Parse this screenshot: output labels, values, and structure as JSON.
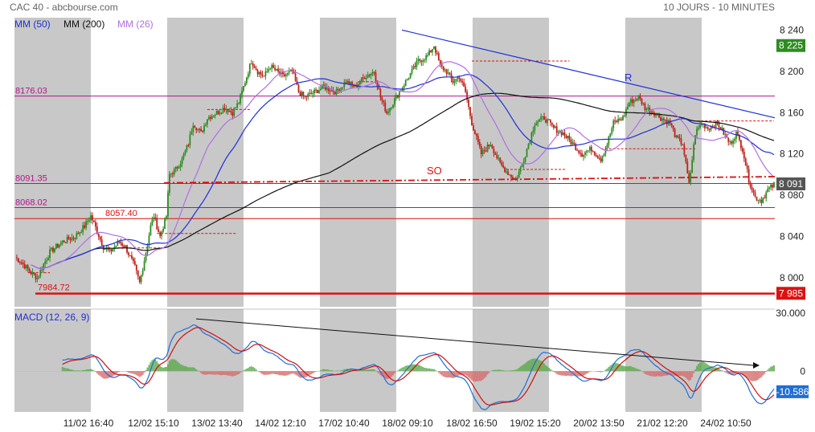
{
  "header": {
    "title": "CAC 40 - abcbourse.com",
    "period": "10 JOURS - 10 MINUTES"
  },
  "legend": {
    "mm50": "MM (50)",
    "mm200": "MM (200)",
    "mm26": "MM (26)"
  },
  "colors": {
    "mm50": "#1f2fd6",
    "mm200": "#111111",
    "mm26": "#b070e0",
    "up": "#2e8b22",
    "down": "#c0201a",
    "level": "#b0158c",
    "support": "#dd1111",
    "resistance": "#1f2fd6",
    "shade": "#c8c8c8"
  },
  "chart_data": {
    "type": "candlestick",
    "price_axis": {
      "ticks": [
        "8 240",
        "8 200",
        "8 160",
        "8 120",
        "8 080",
        "8 040",
        "8 000"
      ],
      "tick_values": [
        8240,
        8200,
        8160,
        8120,
        8080,
        8040,
        8000
      ],
      "ylim": [
        7972,
        8252
      ]
    },
    "badges": {
      "last_high": "8 225",
      "last": "8 091",
      "low": "7 985"
    },
    "level_labels": [
      "8176.03",
      "8091.35",
      "8068.02",
      "8057.40",
      "7984.72"
    ],
    "level_values": [
      8176.03,
      8091.35,
      8068.02,
      8057.4,
      7984.72
    ],
    "annotations": {
      "resistance": "R",
      "support": "SO"
    },
    "x_labels": [
      "11/02 16:40",
      "12/02 15:10",
      "13/02 13:40",
      "14/02 12:10",
      "17/02 10:40",
      "18/02 09:10",
      "18/02 16:50",
      "19/02 15:20",
      "20/02 13:50",
      "21/02 12:20",
      "24/02 10:50"
    ],
    "shaded_sessions": [
      0,
      2,
      4,
      6,
      8
    ],
    "series": [
      {
        "name": "CAC 40",
        "anchors": [
          [
            0,
            8020
          ],
          [
            4,
            8015
          ],
          [
            10,
            8005
          ],
          [
            14,
            8000
          ],
          [
            17,
            8010
          ],
          [
            22,
            8025
          ],
          [
            30,
            8035
          ],
          [
            38,
            8040
          ],
          [
            44,
            8050
          ],
          [
            48,
            8060
          ],
          [
            52,
            8045
          ],
          [
            56,
            8030
          ],
          [
            60,
            8025
          ],
          [
            66,
            8035
          ],
          [
            70,
            8030
          ],
          [
            76,
            8010
          ],
          [
            79,
            7995
          ],
          [
            83,
            8025
          ],
          [
            86,
            8050
          ],
          [
            88,
            8060
          ],
          [
            92,
            8040
          ],
          [
            96,
            8060
          ],
          [
            98,
            8100
          ],
          [
            102,
            8105
          ],
          [
            106,
            8115
          ],
          [
            110,
            8130
          ],
          [
            113,
            8150
          ],
          [
            118,
            8140
          ],
          [
            122,
            8155
          ],
          [
            128,
            8160
          ],
          [
            133,
            8165
          ],
          [
            138,
            8160
          ],
          [
            142,
            8170
          ],
          [
            146,
            8190
          ],
          [
            150,
            8210
          ],
          [
            154,
            8200
          ],
          [
            158,
            8195
          ],
          [
            162,
            8205
          ],
          [
            166,
            8200
          ],
          [
            170,
            8195
          ],
          [
            176,
            8200
          ],
          [
            180,
            8180
          ],
          [
            184,
            8175
          ],
          [
            190,
            8180
          ],
          [
            196,
            8185
          ],
          [
            204,
            8180
          ],
          [
            210,
            8190
          ],
          [
            216,
            8185
          ],
          [
            222,
            8195
          ],
          [
            228,
            8200
          ],
          [
            232,
            8175
          ],
          [
            236,
            8160
          ],
          [
            240,
            8170
          ],
          [
            246,
            8185
          ],
          [
            250,
            8195
          ],
          [
            256,
            8210
          ],
          [
            262,
            8215
          ],
          [
            266,
            8225
          ],
          [
            270,
            8205
          ],
          [
            274,
            8200
          ],
          [
            278,
            8190
          ],
          [
            282,
            8195
          ],
          [
            286,
            8180
          ],
          [
            290,
            8150
          ],
          [
            296,
            8120
          ],
          [
            302,
            8130
          ],
          [
            308,
            8110
          ],
          [
            314,
            8100
          ],
          [
            318,
            8095
          ],
          [
            322,
            8110
          ],
          [
            326,
            8130
          ],
          [
            330,
            8150
          ],
          [
            336,
            8155
          ],
          [
            342,
            8145
          ],
          [
            348,
            8140
          ],
          [
            354,
            8130
          ],
          [
            360,
            8120
          ],
          [
            366,
            8125
          ],
          [
            372,
            8115
          ],
          [
            376,
            8130
          ],
          [
            380,
            8150
          ],
          [
            386,
            8155
          ],
          [
            390,
            8170
          ],
          [
            396,
            8175
          ],
          [
            400,
            8165
          ],
          [
            406,
            8160
          ],
          [
            410,
            8155
          ],
          [
            416,
            8150
          ],
          [
            420,
            8135
          ],
          [
            424,
            8130
          ],
          [
            428,
            8090
          ],
          [
            432,
            8140
          ],
          [
            436,
            8150
          ],
          [
            440,
            8145
          ],
          [
            446,
            8150
          ],
          [
            450,
            8140
          ],
          [
            454,
            8130
          ],
          [
            458,
            8140
          ],
          [
            462,
            8125
          ],
          [
            466,
            8095
          ],
          [
            470,
            8078
          ],
          [
            474,
            8075
          ],
          [
            478,
            8085
          ],
          [
            482,
            8090
          ]
        ]
      }
    ],
    "macd": {
      "label": "MACD (12, 26, 9)",
      "ticks": [
        "30.000",
        "0",
        "-10.586"
      ],
      "tick_values": [
        30,
        0,
        -10.586
      ],
      "ylim": [
        -21,
        32
      ],
      "last": "-10.586"
    }
  }
}
